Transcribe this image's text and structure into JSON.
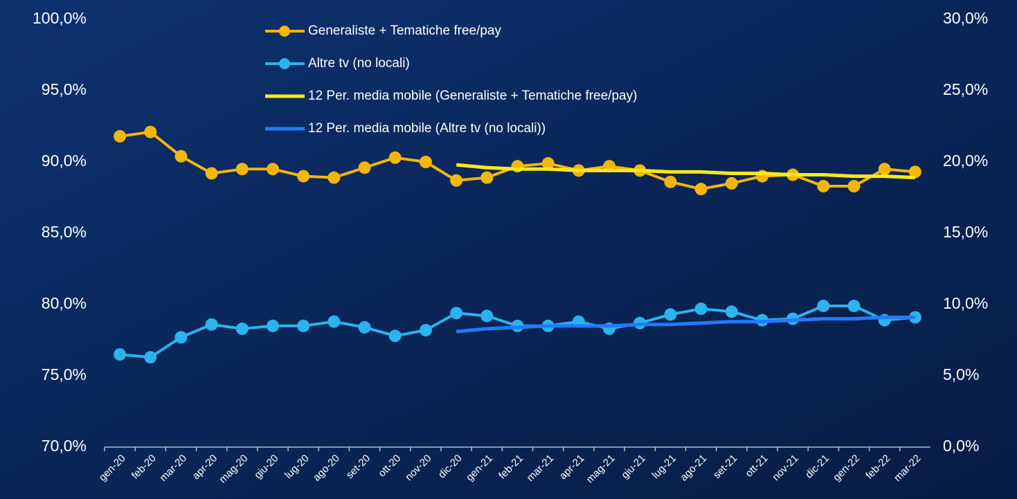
{
  "chart_data": {
    "type": "line",
    "categories": [
      "gen-20",
      "feb-20",
      "mar-20",
      "apr-20",
      "mag-20",
      "giu-20",
      "lug-20",
      "ago-20",
      "set-20",
      "ott-20",
      "nov-20",
      "dic-20",
      "gen-21",
      "feb-21",
      "mar-21",
      "apr-21",
      "mag-21",
      "giu-21",
      "lug-21",
      "ago-21",
      "set-21",
      "ott-21",
      "nov-21",
      "dic-21",
      "gen-22",
      "feb-22",
      "mar-22"
    ],
    "ylim": [
      70,
      100
    ],
    "yticks": [
      {
        "value": 70,
        "label": "70,0%"
      },
      {
        "value": 75,
        "label": "75,0%"
      },
      {
        "value": 80,
        "label": "80,0%"
      },
      {
        "value": 85,
        "label": "85,0%"
      },
      {
        "value": 90,
        "label": "90,0%"
      },
      {
        "value": 95,
        "label": "95,0%"
      },
      {
        "value": 100,
        "label": "100,0%"
      }
    ],
    "y2lim": [
      0,
      30
    ],
    "y2ticks": [
      {
        "value": 0,
        "label": "0,0%"
      },
      {
        "value": 5,
        "label": "5,0%"
      },
      {
        "value": 10,
        "label": "10,0%"
      },
      {
        "value": 15,
        "label": "15,0%"
      },
      {
        "value": 20,
        "label": "20,0%"
      },
      {
        "value": 25,
        "label": "25,0%"
      },
      {
        "value": 30,
        "label": "30,0%"
      }
    ],
    "grid": false,
    "legend": "top",
    "series": [
      {
        "name": "Generaliste + Tematiche free/pay",
        "color": "#f5b50a",
        "axis": "y",
        "markers": true,
        "values": [
          91.8,
          92.1,
          90.4,
          89.2,
          89.5,
          89.5,
          89.0,
          88.9,
          89.6,
          90.3,
          90.0,
          88.7,
          88.9,
          89.7,
          89.9,
          89.4,
          89.7,
          89.4,
          88.6,
          88.1,
          88.5,
          89.0,
          89.1,
          88.3,
          88.3,
          89.5,
          89.3
        ]
      },
      {
        "name": "Altre tv (no locali)",
        "color": "#2bb3ee",
        "axis": "y2",
        "markers": true,
        "values": [
          6.5,
          6.3,
          7.7,
          8.6,
          8.3,
          8.5,
          8.5,
          8.8,
          8.4,
          7.8,
          8.2,
          9.4,
          9.2,
          8.5,
          8.5,
          8.8,
          8.3,
          8.7,
          9.3,
          9.7,
          9.5,
          8.9,
          9.0,
          9.9,
          9.9,
          8.9,
          9.1
        ]
      },
      {
        "name": "12 Per. media mobile (Generaliste + Tematiche free/pay)",
        "color": "#ffe81c",
        "axis": "y",
        "markers": false,
        "values": [
          null,
          null,
          null,
          null,
          null,
          null,
          null,
          null,
          null,
          null,
          null,
          89.8,
          89.6,
          89.5,
          89.5,
          89.4,
          89.4,
          89.4,
          89.3,
          89.3,
          89.2,
          89.2,
          89.1,
          89.1,
          89.0,
          89.0,
          88.9
        ]
      },
      {
        "name": "12 Per. media mobile (Altre tv (no locali))",
        "color": "#1f7bff",
        "axis": "y2",
        "markers": false,
        "values": [
          null,
          null,
          null,
          null,
          null,
          null,
          null,
          null,
          null,
          null,
          null,
          8.1,
          8.3,
          8.4,
          8.5,
          8.5,
          8.5,
          8.6,
          8.6,
          8.7,
          8.8,
          8.8,
          8.9,
          9.0,
          9.0,
          9.1,
          9.1
        ]
      }
    ]
  }
}
